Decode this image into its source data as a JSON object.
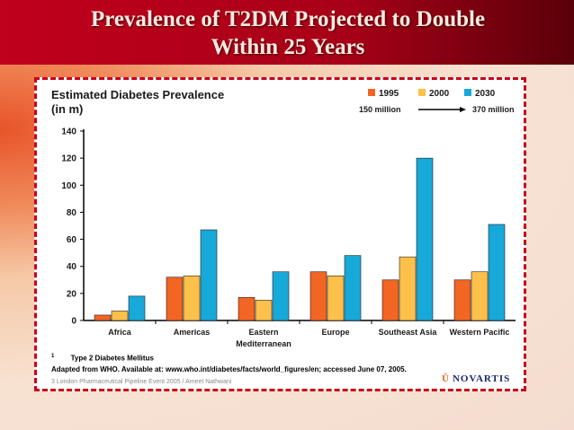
{
  "slide": {
    "title_line1": "Prevalence of T2DM Projected to Double",
    "title_line2": "Within 25 Years"
  },
  "panel": {
    "footnote_marker": "1",
    "footnote_text": "Type 2 Diabetes Mellitus",
    "source": "Adapted from WHO. Available at: www.who.int/diabetes/facts/world_figures/en; accessed June 07, 2005.",
    "footer": "3 London Pharmaceutical Pipeline Event 2005 / Ameet Nathwani",
    "logo_text": "NOVARTIS",
    "logo_mark": "Ů"
  },
  "chart_data": {
    "type": "bar",
    "title_line1": "Estimated Diabetes Prevalence",
    "title_line2": "(in m)",
    "categories": [
      "Africa",
      "Americas",
      "Eastern Mediterranean",
      "Europe",
      "Southeast Asia",
      "Western Pacific"
    ],
    "category_lines": [
      [
        "Africa"
      ],
      [
        "Americas"
      ],
      [
        "Eastern",
        "Mediterranean"
      ],
      [
        "Europe"
      ],
      [
        "Southeast Asia"
      ],
      [
        "Western Pacific"
      ]
    ],
    "series": [
      {
        "name": "1995",
        "color": "#f26522",
        "values": [
          4,
          32,
          17,
          36,
          30,
          30
        ]
      },
      {
        "name": "2000",
        "color": "#fdc04a",
        "values": [
          7,
          33,
          15,
          33,
          47,
          36
        ]
      },
      {
        "name": "2030",
        "color": "#17a9d9",
        "values": [
          18,
          67,
          36,
          48,
          120,
          71
        ]
      }
    ],
    "yticks": [
      0,
      20,
      40,
      60,
      80,
      100,
      120,
      140
    ],
    "ylim": [
      0,
      140
    ],
    "annotation_start": "150 million",
    "annotation_end": "370 million",
    "legend_position": "top-right"
  }
}
